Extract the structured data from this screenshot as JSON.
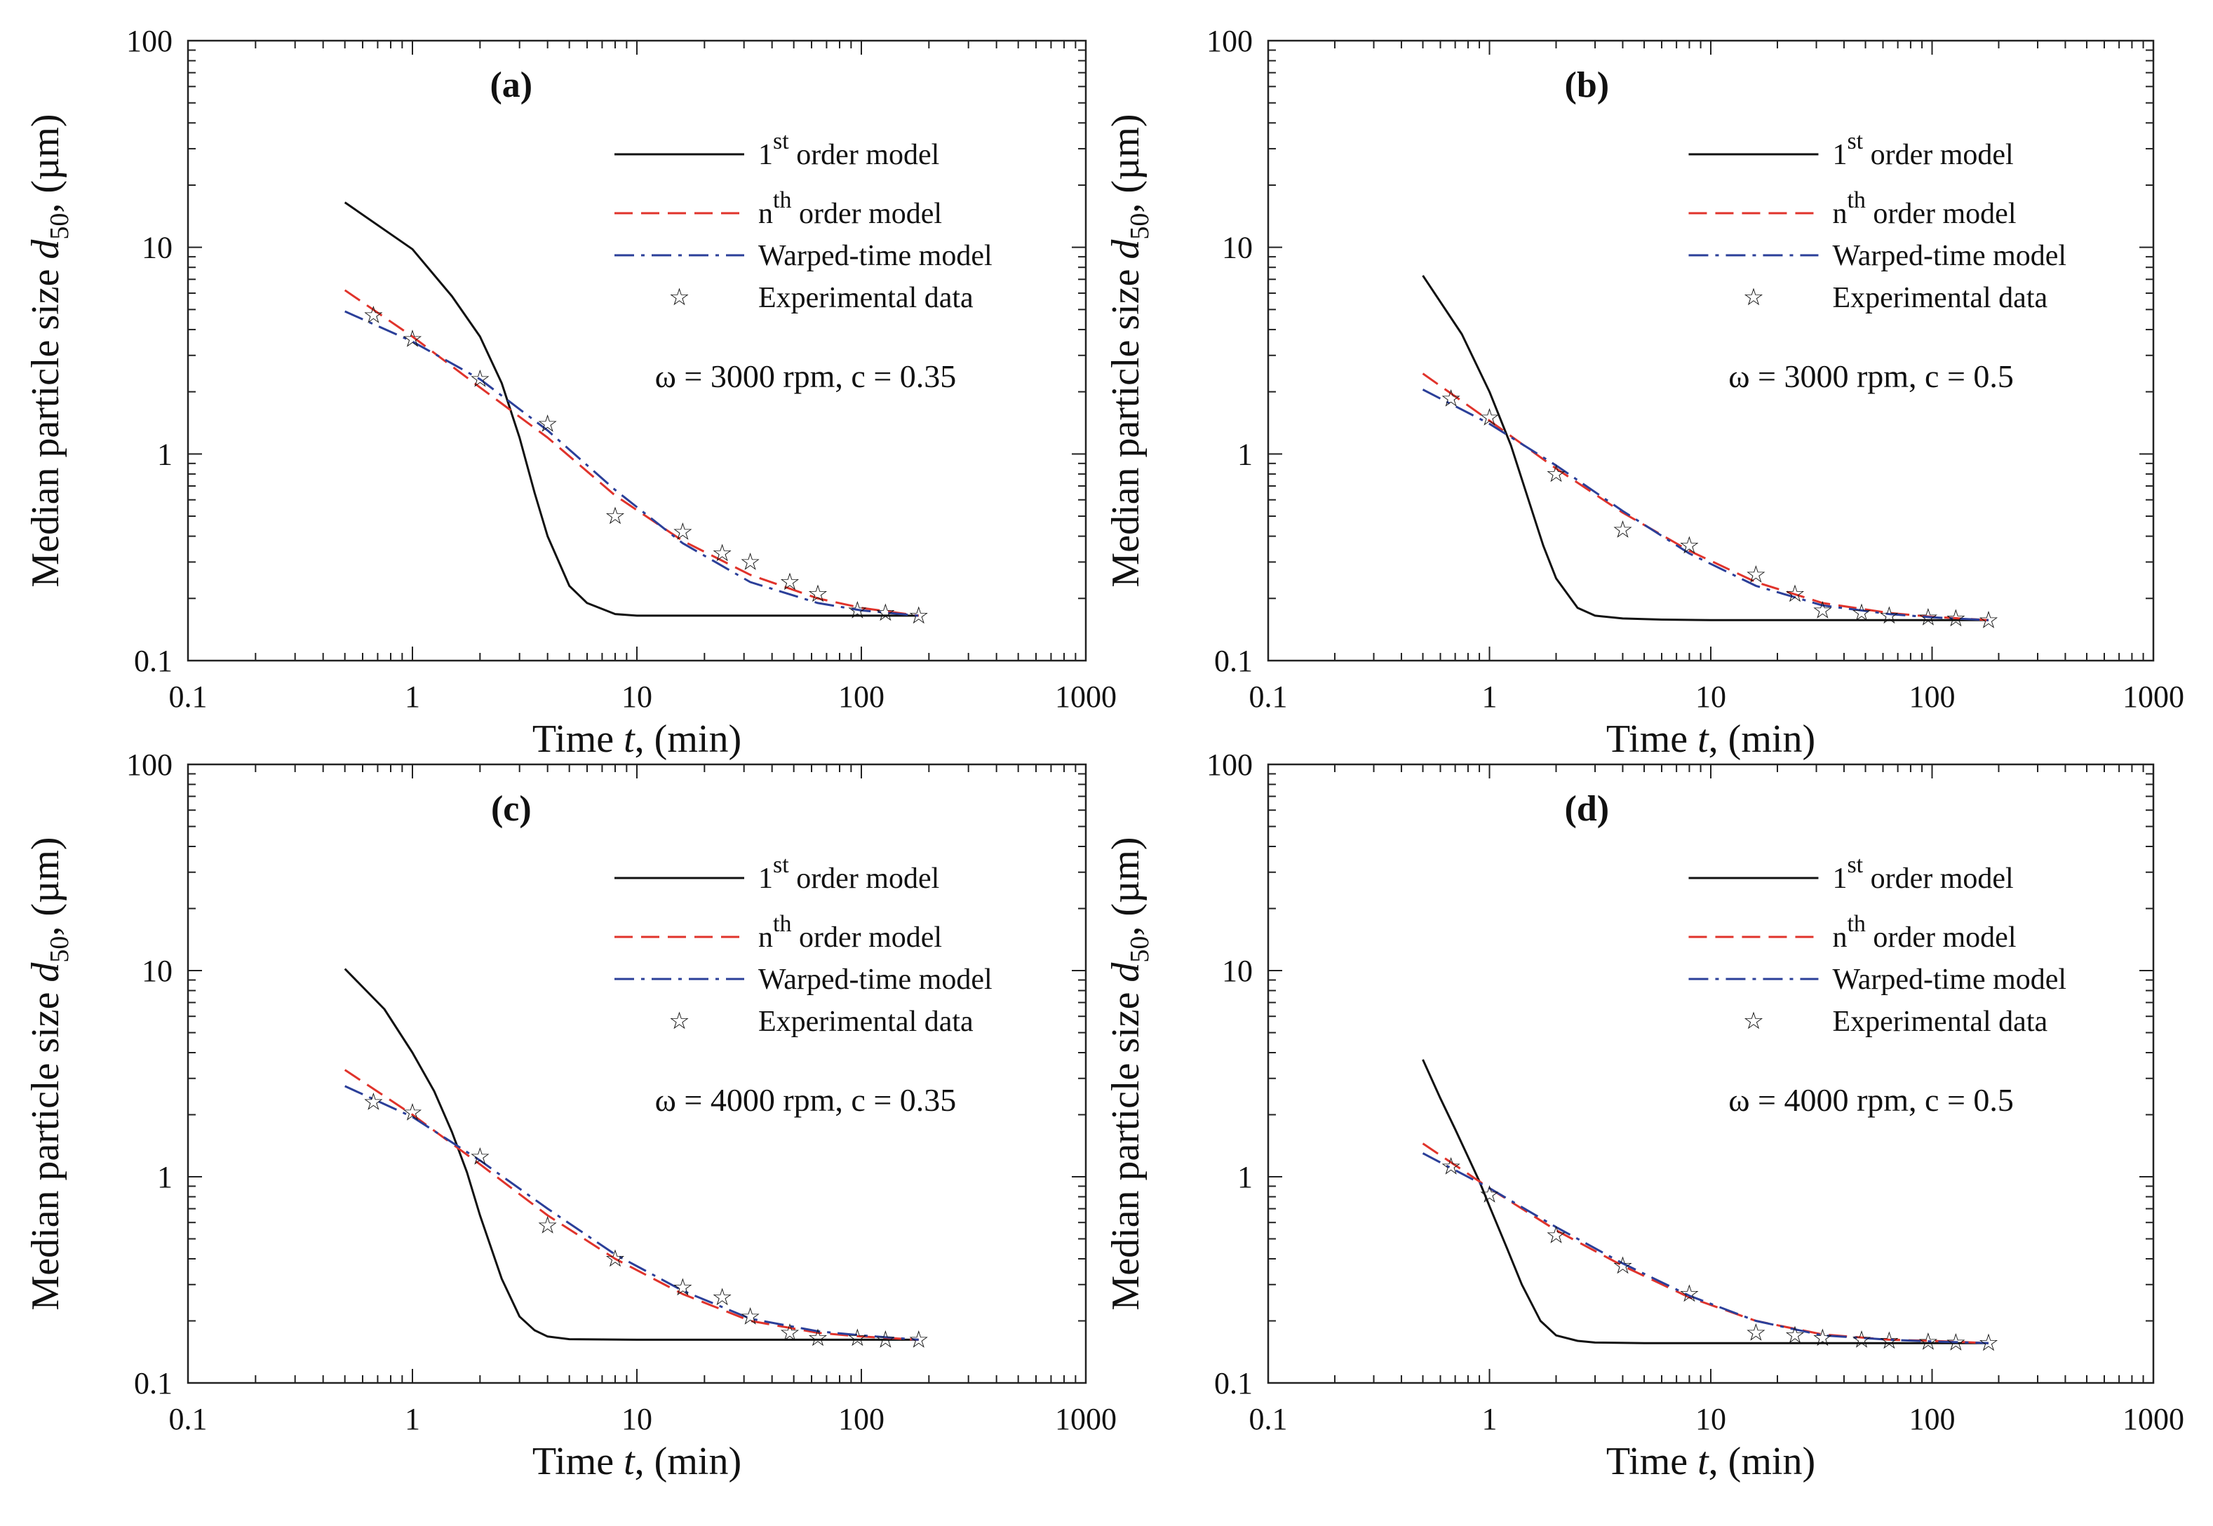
{
  "chart_data": [
    {
      "type": "line",
      "panel_label": "(a)",
      "xscale": "log",
      "yscale": "log",
      "xlim": [
        0.1,
        1000
      ],
      "ylim": [
        0.1,
        100
      ],
      "xlabel_pre": "Time ",
      "xlabel_var": "t",
      "xlabel_post": ", (min)",
      "ylabel_pre": "Median particle size ",
      "ylabel_var": "d",
      "ylabel_sub": "50",
      "ylabel_post": ", (µm)",
      "xticks": [
        "0.1",
        "1",
        "10",
        "100",
        "1000"
      ],
      "yticks": [
        "0.1",
        "1",
        "10",
        "100"
      ],
      "condition": "ω = 3000 rpm, c = 0.35",
      "legend": [
        {
          "pre": "1",
          "sup": "st",
          "post": " order model"
        },
        {
          "pre": "n",
          "sup": "th",
          "post": " order model"
        },
        {
          "text": "Warped-time model"
        },
        {
          "text": "Experimental data"
        }
      ],
      "series": [
        {
          "name": "1st order model",
          "color": "#111111",
          "style": "solid",
          "x": [
            0.5,
            1,
            1.5,
            2,
            2.5,
            3,
            3.5,
            4,
            5,
            6,
            8,
            10,
            20,
            50,
            100,
            180
          ],
          "y": [
            16.5,
            9.8,
            5.8,
            3.7,
            2.2,
            1.2,
            0.65,
            0.4,
            0.23,
            0.19,
            0.168,
            0.165,
            0.165,
            0.165,
            0.165,
            0.165
          ]
        },
        {
          "name": "nth order model",
          "color": "#e0332b",
          "style": "dashed",
          "x": [
            0.5,
            1,
            2,
            4,
            8,
            16,
            32,
            64,
            100,
            180
          ],
          "y": [
            6.2,
            3.7,
            2.1,
            1.2,
            0.63,
            0.38,
            0.26,
            0.2,
            0.18,
            0.165
          ]
        },
        {
          "name": "Warped-time model",
          "color": "#2b3f99",
          "style": "dashdot",
          "x": [
            0.5,
            1,
            2,
            4,
            8,
            16,
            32,
            64,
            100,
            180
          ],
          "y": [
            4.9,
            3.5,
            2.3,
            1.3,
            0.67,
            0.37,
            0.24,
            0.19,
            0.175,
            0.165
          ]
        },
        {
          "name": "Experimental data",
          "color": "#111111",
          "style": "markers",
          "x": [
            0.67,
            1,
            2,
            4,
            8,
            16,
            24,
            32,
            48,
            64,
            96,
            128,
            180
          ],
          "y": [
            4.7,
            3.6,
            2.3,
            1.4,
            0.5,
            0.42,
            0.33,
            0.3,
            0.24,
            0.21,
            0.175,
            0.17,
            0.165
          ]
        }
      ]
    },
    {
      "type": "line",
      "panel_label": "(b)",
      "xscale": "log",
      "yscale": "log",
      "xlim": [
        0.1,
        1000
      ],
      "ylim": [
        0.1,
        100
      ],
      "xlabel_pre": "Time ",
      "xlabel_var": "t",
      "xlabel_post": ", (min)",
      "ylabel_pre": "Median particle size ",
      "ylabel_var": "d",
      "ylabel_sub": "50",
      "ylabel_post": ", (µm)",
      "xticks": [
        "0.1",
        "1",
        "10",
        "100",
        "1000"
      ],
      "yticks": [
        "0.1",
        "1",
        "10",
        "100"
      ],
      "condition": "ω = 3000 rpm, c = 0.5",
      "legend": [
        {
          "pre": "1",
          "sup": "st",
          "post": " order model"
        },
        {
          "pre": "n",
          "sup": "th",
          "post": " order model"
        },
        {
          "text": "Warped-time model"
        },
        {
          "text": "Experimental data"
        }
      ],
      "series": [
        {
          "name": "1st order model",
          "color": "#111111",
          "style": "solid",
          "x": [
            0.5,
            0.75,
            1,
            1.25,
            1.5,
            1.75,
            2,
            2.5,
            3,
            4,
            6,
            10,
            50,
            180
          ],
          "y": [
            7.3,
            3.8,
            2.0,
            1.1,
            0.6,
            0.36,
            0.25,
            0.18,
            0.165,
            0.16,
            0.158,
            0.157,
            0.157,
            0.157
          ]
        },
        {
          "name": "nth order model",
          "color": "#e0332b",
          "style": "dashed",
          "x": [
            0.5,
            1,
            2,
            4,
            8,
            16,
            32,
            64,
            100,
            180
          ],
          "y": [
            2.45,
            1.45,
            0.85,
            0.52,
            0.34,
            0.24,
            0.19,
            0.17,
            0.163,
            0.157
          ]
        },
        {
          "name": "Warped-time model",
          "color": "#2b3f99",
          "style": "dashdot",
          "x": [
            0.5,
            1,
            2,
            4,
            8,
            16,
            32,
            64,
            100,
            180
          ],
          "y": [
            2.05,
            1.4,
            0.88,
            0.53,
            0.33,
            0.23,
            0.185,
            0.168,
            0.162,
            0.157
          ]
        },
        {
          "name": "Experimental data",
          "color": "#111111",
          "style": "markers",
          "x": [
            0.67,
            1,
            2,
            4,
            8,
            16,
            24,
            32,
            48,
            64,
            96,
            128,
            180
          ],
          "y": [
            1.85,
            1.5,
            0.8,
            0.43,
            0.36,
            0.26,
            0.21,
            0.175,
            0.17,
            0.165,
            0.162,
            0.16,
            0.157
          ]
        }
      ]
    },
    {
      "type": "line",
      "panel_label": "(c)",
      "xscale": "log",
      "yscale": "log",
      "xlim": [
        0.1,
        1000
      ],
      "ylim": [
        0.1,
        100
      ],
      "xlabel_pre": "Time ",
      "xlabel_var": "t",
      "xlabel_post": ", (min)",
      "ylabel_pre": "Median particle size ",
      "ylabel_var": "d",
      "ylabel_sub": "50",
      "ylabel_post": ", (µm)",
      "xticks": [
        "0.1",
        "1",
        "10",
        "100",
        "1000"
      ],
      "yticks": [
        "0.1",
        "1",
        "10",
        "100"
      ],
      "condition": "ω = 4000 rpm, c = 0.35",
      "legend": [
        {
          "pre": "1",
          "sup": "st",
          "post": " order model"
        },
        {
          "pre": "n",
          "sup": "th",
          "post": " order model"
        },
        {
          "text": "Warped-time model"
        },
        {
          "text": "Experimental data"
        }
      ],
      "series": [
        {
          "name": "1st order model",
          "color": "#111111",
          "style": "solid",
          "x": [
            0.5,
            0.75,
            1,
            1.25,
            1.5,
            1.75,
            2,
            2.5,
            3,
            3.5,
            4,
            5,
            10,
            50,
            180
          ],
          "y": [
            10.2,
            6.5,
            4.0,
            2.6,
            1.65,
            1.05,
            0.65,
            0.32,
            0.21,
            0.18,
            0.168,
            0.163,
            0.162,
            0.162,
            0.162
          ]
        },
        {
          "name": "nth order model",
          "color": "#e0332b",
          "style": "dashed",
          "x": [
            0.5,
            1,
            2,
            4,
            8,
            16,
            32,
            64,
            100,
            180
          ],
          "y": [
            3.3,
            2.0,
            1.15,
            0.65,
            0.4,
            0.27,
            0.2,
            0.175,
            0.168,
            0.162
          ]
        },
        {
          "name": "Warped-time model",
          "color": "#2b3f99",
          "style": "dashdot",
          "x": [
            0.5,
            1,
            2,
            4,
            8,
            16,
            32,
            64,
            100,
            180
          ],
          "y": [
            2.75,
            1.95,
            1.2,
            0.7,
            0.42,
            0.28,
            0.205,
            0.178,
            0.17,
            0.162
          ]
        },
        {
          "name": "Experimental data",
          "color": "#111111",
          "style": "markers",
          "x": [
            0.67,
            1,
            2,
            4,
            8,
            16,
            24,
            32,
            48,
            64,
            96,
            128,
            180
          ],
          "y": [
            2.3,
            2.05,
            1.25,
            0.58,
            0.4,
            0.29,
            0.26,
            0.21,
            0.175,
            0.165,
            0.165,
            0.162,
            0.162
          ]
        }
      ]
    },
    {
      "type": "line",
      "panel_label": "(d)",
      "xscale": "log",
      "yscale": "log",
      "xlim": [
        0.1,
        1000
      ],
      "ylim": [
        0.1,
        100
      ],
      "xlabel_pre": "Time ",
      "xlabel_var": "t",
      "xlabel_post": ", (min)",
      "ylabel_pre": "Median particle size ",
      "ylabel_var": "d",
      "ylabel_sub": "50",
      "ylabel_post": ", (µm)",
      "xticks": [
        "0.1",
        "1",
        "10",
        "100",
        "1000"
      ],
      "yticks": [
        "0.1",
        "1",
        "10",
        "100"
      ],
      "condition": "ω = 4000 rpm, c = 0.5",
      "legend": [
        {
          "pre": "1",
          "sup": "st",
          "post": " order model"
        },
        {
          "pre": "n",
          "sup": "th",
          "post": " order model"
        },
        {
          "text": "Warped-time model"
        },
        {
          "text": "Experimental data"
        }
      ],
      "series": [
        {
          "name": "1st order model",
          "color": "#111111",
          "style": "solid",
          "x": [
            0.5,
            0.6,
            0.7,
            0.8,
            0.9,
            1,
            1.2,
            1.4,
            1.7,
            2,
            2.5,
            3,
            5,
            10,
            50,
            180
          ],
          "y": [
            3.7,
            2.4,
            1.7,
            1.25,
            0.95,
            0.72,
            0.45,
            0.3,
            0.2,
            0.17,
            0.16,
            0.157,
            0.156,
            0.156,
            0.156,
            0.156
          ]
        },
        {
          "name": "nth order model",
          "color": "#e0332b",
          "style": "dashed",
          "x": [
            0.5,
            1,
            2,
            4,
            8,
            16,
            32,
            64,
            100,
            180
          ],
          "y": [
            1.45,
            0.88,
            0.55,
            0.37,
            0.26,
            0.2,
            0.172,
            0.162,
            0.16,
            0.156
          ]
        },
        {
          "name": "Warped-time model",
          "color": "#2b3f99",
          "style": "dashdot",
          "x": [
            0.5,
            1,
            2,
            4,
            8,
            16,
            32,
            64,
            100,
            180
          ],
          "y": [
            1.3,
            0.88,
            0.57,
            0.38,
            0.265,
            0.2,
            0.17,
            0.162,
            0.159,
            0.156
          ]
        },
        {
          "name": "Experimental data",
          "color": "#111111",
          "style": "markers",
          "x": [
            0.67,
            1,
            2,
            4,
            8,
            16,
            24,
            32,
            48,
            64,
            96,
            128,
            180
          ],
          "y": [
            1.12,
            0.82,
            0.52,
            0.37,
            0.27,
            0.175,
            0.17,
            0.165,
            0.162,
            0.16,
            0.158,
            0.157,
            0.156
          ]
        }
      ]
    }
  ]
}
